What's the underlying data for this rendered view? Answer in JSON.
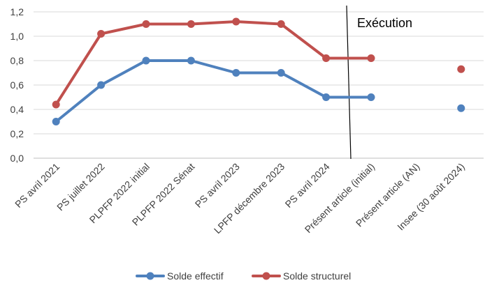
{
  "chart_data": {
    "type": "line",
    "categories": [
      "PS avril 2021",
      "PS juillet 2022",
      "PLPFP 2022 initial",
      "PLPFP 2022 Sénat",
      "PS avril 2023",
      "LPFP décembre 2023",
      "PS avril 2024",
      "Présent article (initial)",
      "Présent article (AN)",
      "Insee (30 août 2024)"
    ],
    "series": [
      {
        "name": "Solde effectif",
        "color": "#4F81BD",
        "values": [
          0.3,
          0.6,
          0.8,
          0.8,
          0.7,
          0.7,
          0.5,
          0.5,
          null,
          0.41
        ]
      },
      {
        "name": "Solde structurel",
        "color": "#C0504D",
        "values": [
          0.44,
          1.02,
          1.1,
          1.1,
          1.12,
          1.1,
          0.82,
          0.82,
          null,
          0.73
        ]
      }
    ],
    "y_ticks": [
      "0,0",
      "0,2",
      "0,4",
      "0,6",
      "0,8",
      "1,0",
      "1,2"
    ],
    "ylim": [
      0,
      1.2
    ],
    "grid": true,
    "legend": "bottom",
    "annotation": "Exécution"
  }
}
